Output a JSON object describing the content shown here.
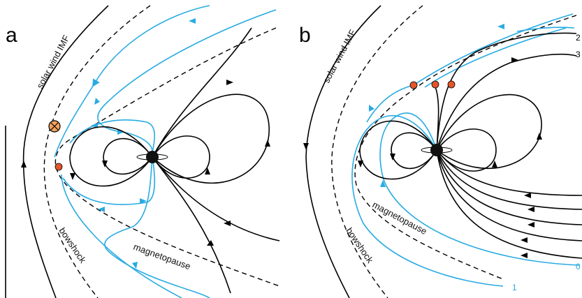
{
  "panels": [
    {
      "letter": "a",
      "labels": {
        "solar_wind": "solar wind IMF",
        "bowshock": "bowshock",
        "magnetopause": "magnetopause"
      }
    },
    {
      "letter": "b",
      "labels": {
        "solar_wind": "solar wind IMF",
        "bowshock": "bowshock",
        "magnetopause": "magnetopause",
        "line_numbers": [
          "1",
          "2",
          "3",
          "0"
        ]
      }
    }
  ],
  "colors": {
    "field_line": "#000000",
    "reconnected_line": "#29abe2",
    "reconnection_point": "#e2562b",
    "x_marker_fill": "#f2a25b"
  },
  "icons": [
    "planet-icon",
    "reconnection-point-icon",
    "x-line-marker-icon"
  ]
}
